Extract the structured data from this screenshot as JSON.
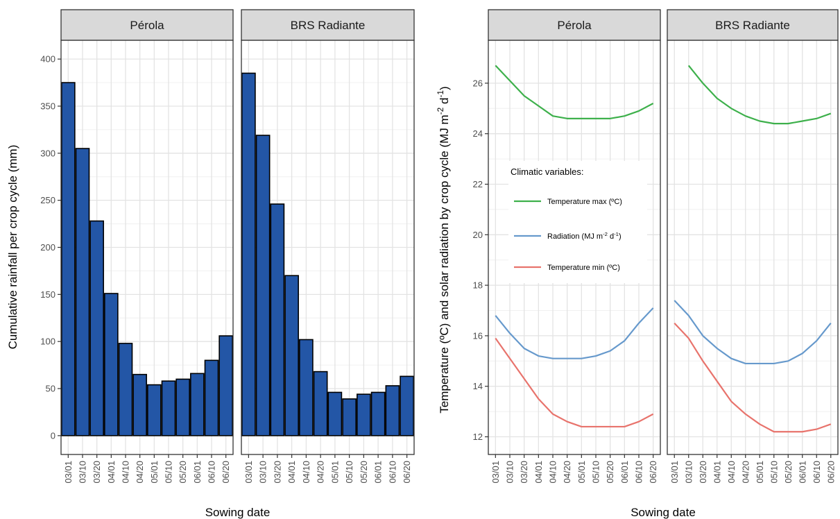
{
  "chart_data": [
    {
      "type": "bar",
      "panels": [
        "Pérola",
        "BRS Radiante"
      ],
      "categories": [
        "03/01",
        "03/10",
        "03/20",
        "04/01",
        "04/10",
        "04/20",
        "05/01",
        "05/10",
        "05/20",
        "06/01",
        "06/10",
        "06/20"
      ],
      "series": [
        {
          "panel": "Pérola",
          "values": [
            375,
            305,
            228,
            151,
            98,
            65,
            54,
            58,
            60,
            66,
            80,
            106
          ]
        },
        {
          "panel": "BRS Radiante",
          "values": [
            385,
            319,
            246,
            170,
            102,
            68,
            46,
            39,
            44,
            46,
            53,
            63
          ]
        }
      ],
      "bar_color": "#2356A6",
      "xlabel": "Sowing date",
      "ylabel": "Cumulative rainfall per crop cycle (mm)",
      "ylim": [
        -20,
        420
      ],
      "yticks": [
        0,
        50,
        100,
        150,
        200,
        250,
        300,
        350,
        400
      ],
      "grid": true
    },
    {
      "type": "line",
      "panels": [
        "Pérola",
        "BRS Radiante"
      ],
      "categories": [
        "03/01",
        "03/10",
        "03/20",
        "04/01",
        "04/10",
        "04/20",
        "05/01",
        "05/10",
        "05/20",
        "06/01",
        "06/10",
        "06/20"
      ],
      "series": [
        {
          "name": "Temperature max (ºC)",
          "panel": "Pérola",
          "color": "#3DB04B",
          "values": [
            26.7,
            26.1,
            25.5,
            25.1,
            24.7,
            24.6,
            24.6,
            24.6,
            24.6,
            24.7,
            24.9,
            25.2
          ]
        },
        {
          "name": "Radiation (MJ m-2 d-1)",
          "panel": "Pérola",
          "color": "#6699CC",
          "values": [
            16.8,
            16.1,
            15.5,
            15.2,
            15.1,
            15.1,
            15.1,
            15.2,
            15.4,
            15.8,
            16.5,
            17.1
          ]
        },
        {
          "name": "Temperature min (ºC)",
          "panel": "Pérola",
          "color": "#E8736C",
          "values": [
            15.9,
            15.1,
            14.3,
            13.5,
            12.9,
            12.6,
            12.4,
            12.4,
            12.4,
            12.4,
            12.6,
            12.9
          ]
        },
        {
          "name": "Temperature max (ºC)",
          "panel": "BRS Radiante",
          "color": "#3DB04B",
          "values": [
            null,
            26.7,
            26.0,
            25.4,
            25.0,
            24.7,
            24.5,
            24.4,
            24.4,
            24.5,
            24.6,
            24.8
          ]
        },
        {
          "name": "Radiation (MJ m-2 d-1)",
          "panel": "BRS Radiante",
          "color": "#6699CC",
          "values": [
            17.4,
            16.8,
            16.0,
            15.5,
            15.1,
            14.9,
            14.9,
            14.9,
            15.0,
            15.3,
            15.8,
            16.5
          ]
        },
        {
          "name": "Temperature min (ºC)",
          "panel": "BRS Radiante",
          "color": "#E8736C",
          "values": [
            16.5,
            15.9,
            15.0,
            14.2,
            13.4,
            12.9,
            12.5,
            12.2,
            12.2,
            12.2,
            12.3,
            12.5
          ]
        }
      ],
      "xlabel": "Sowing date",
      "ylabel": "Temperature (ºC) and solar radiation by crop cycle (MJ m-2 d-1)",
      "ylim": [
        11.3,
        27.7
      ],
      "yticks": [
        12,
        14,
        16,
        18,
        20,
        22,
        24,
        26
      ],
      "grid": true,
      "legend": {
        "title": "Climatic variables:",
        "placement": "inside-left",
        "items": [
          "Temperature max (ºC)",
          "Radiation (MJ m-2 d-1)",
          "Temperature min (ºC)"
        ]
      }
    }
  ]
}
